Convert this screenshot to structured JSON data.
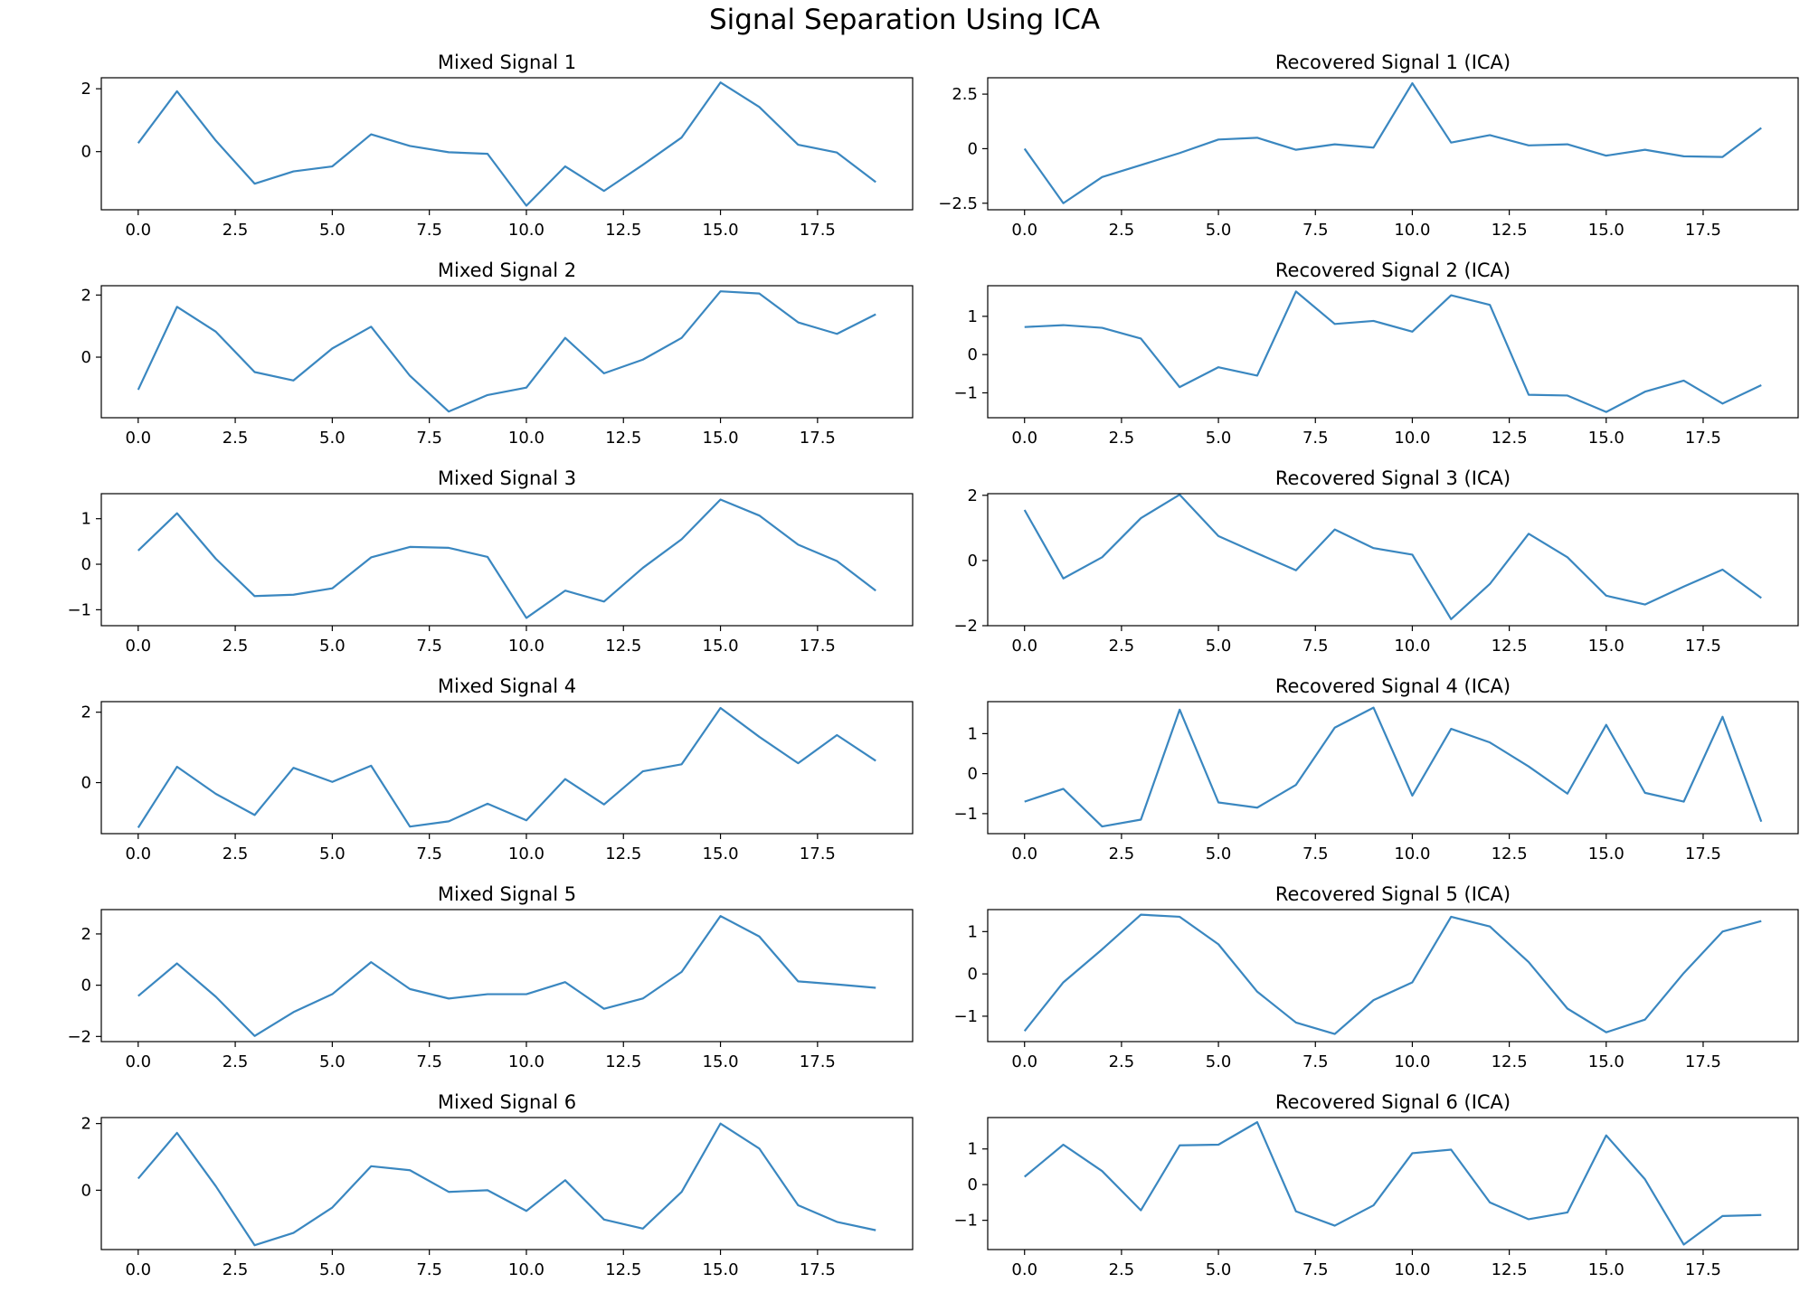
{
  "figure": {
    "title": "Signal Separation Using ICA",
    "line_color": "#3a87c0"
  },
  "chart_data": [
    {
      "type": "line",
      "title": "Mixed Signal 1",
      "x": [
        0,
        1,
        2,
        3,
        4,
        5,
        6,
        7,
        8,
        9,
        10,
        11,
        12,
        13,
        14,
        15,
        16,
        17,
        18,
        19
      ],
      "y": [
        0.27,
        1.92,
        0.35,
        -1.02,
        -0.63,
        -0.47,
        0.55,
        0.18,
        -0.02,
        -0.07,
        -1.72,
        -0.47,
        -1.25,
        -0.42,
        0.45,
        2.2,
        1.42,
        0.22,
        -0.03,
        -0.97
      ],
      "ylim": [
        -1.85,
        2.35
      ],
      "yticks": [
        0,
        2
      ],
      "xticks": [
        0,
        2.5,
        5,
        7.5,
        10,
        12.5,
        15,
        17.5
      ],
      "xlim": [
        -0.95,
        19.95
      ]
    },
    {
      "type": "line",
      "title": "Recovered Signal 1 (ICA)",
      "x": [
        0,
        1,
        2,
        3,
        4,
        5,
        6,
        7,
        8,
        9,
        10,
        11,
        12,
        13,
        14,
        15,
        16,
        17,
        18,
        19
      ],
      "y": [
        0,
        -2.5,
        -1.3,
        -0.75,
        -0.2,
        0.42,
        0.5,
        -0.05,
        0.2,
        0.05,
        3,
        0.28,
        0.62,
        0.15,
        0.2,
        -0.32,
        -0.05,
        -0.35,
        -0.38,
        0.95
      ],
      "ylim": [
        -2.8,
        3.25
      ],
      "yticks": [
        -2.5,
        0,
        2.5
      ],
      "xticks": [
        0,
        2.5,
        5,
        7.5,
        10,
        12.5,
        15,
        17.5
      ],
      "xlim": [
        -0.95,
        19.95
      ]
    },
    {
      "type": "line",
      "title": "Mixed Signal 2",
      "x": [
        0,
        1,
        2,
        3,
        4,
        5,
        6,
        7,
        8,
        9,
        10,
        11,
        12,
        13,
        14,
        15,
        16,
        17,
        18,
        19
      ],
      "y": [
        -1.05,
        1.62,
        0.82,
        -0.48,
        -0.75,
        0.28,
        0.98,
        -0.6,
        -1.75,
        -1.22,
        -0.98,
        0.62,
        -0.52,
        -0.08,
        0.62,
        2.12,
        2.05,
        1.12,
        0.75,
        1.38
      ],
      "ylim": [
        -1.95,
        2.3
      ],
      "yticks": [
        0,
        2
      ],
      "xticks": [
        0,
        2.5,
        5,
        7.5,
        10,
        12.5,
        15,
        17.5
      ],
      "xlim": [
        -0.95,
        19.95
      ]
    },
    {
      "type": "line",
      "title": "Recovered Signal 2 (ICA)",
      "x": [
        0,
        1,
        2,
        3,
        4,
        5,
        6,
        7,
        8,
        9,
        10,
        11,
        12,
        13,
        14,
        15,
        16,
        17,
        18,
        19
      ],
      "y": [
        0.72,
        0.77,
        0.7,
        0.42,
        -0.85,
        -0.33,
        -0.55,
        1.65,
        0.8,
        0.88,
        0.6,
        1.55,
        1.3,
        -1.05,
        -1.07,
        -1.5,
        -0.97,
        -0.68,
        -1.28,
        -0.8
      ],
      "ylim": [
        -1.65,
        1.8
      ],
      "yticks": [
        -1,
        0,
        1
      ],
      "xticks": [
        0,
        2.5,
        5,
        7.5,
        10,
        12.5,
        15,
        17.5
      ],
      "xlim": [
        -0.95,
        19.95
      ]
    },
    {
      "type": "line",
      "title": "Mixed Signal 3",
      "x": [
        0,
        1,
        2,
        3,
        4,
        5,
        6,
        7,
        8,
        9,
        10,
        11,
        12,
        13,
        14,
        15,
        16,
        17,
        18,
        19
      ],
      "y": [
        0.3,
        1.12,
        0.12,
        -0.7,
        -0.67,
        -0.53,
        0.15,
        0.38,
        0.36,
        0.16,
        -1.18,
        -0.58,
        -0.82,
        -0.08,
        0.55,
        1.42,
        1.07,
        0.43,
        0.07,
        -0.58
      ],
      "ylim": [
        -1.35,
        1.55
      ],
      "yticks": [
        -1,
        0,
        1
      ],
      "xticks": [
        0,
        2.5,
        5,
        7.5,
        10,
        12.5,
        15,
        17.5
      ],
      "xlim": [
        -0.95,
        19.95
      ]
    },
    {
      "type": "line",
      "title": "Recovered Signal 3 (ICA)",
      "x": [
        0,
        1,
        2,
        3,
        4,
        5,
        6,
        7,
        8,
        9,
        10,
        11,
        12,
        13,
        14,
        15,
        16,
        17,
        18,
        19
      ],
      "y": [
        1.55,
        -0.55,
        0.1,
        1.3,
        2.02,
        0.75,
        0.22,
        -0.3,
        0.95,
        0.38,
        0.18,
        -1.8,
        -0.72,
        0.82,
        0.1,
        -1.08,
        -1.35,
        -0.8,
        -0.28,
        -1.15
      ],
      "ylim": [
        -2.0,
        2.05
      ],
      "yticks": [
        -2,
        0,
        2
      ],
      "xticks": [
        0,
        2.5,
        5,
        7.5,
        10,
        12.5,
        15,
        17.5
      ],
      "xlim": [
        -0.95,
        19.95
      ]
    },
    {
      "type": "line",
      "title": "Mixed Signal 4",
      "x": [
        0,
        1,
        2,
        3,
        4,
        5,
        6,
        7,
        8,
        9,
        10,
        11,
        12,
        13,
        14,
        15,
        16,
        17,
        18,
        19
      ],
      "y": [
        -1.28,
        0.45,
        -0.32,
        -0.92,
        0.42,
        0.02,
        0.48,
        -1.25,
        -1.1,
        -0.6,
        -1.07,
        0.1,
        -0.62,
        0.32,
        0.52,
        2.12,
        1.3,
        0.55,
        1.35,
        0.62
      ],
      "ylim": [
        -1.45,
        2.3
      ],
      "yticks": [
        0,
        2
      ],
      "xticks": [
        0,
        2.5,
        5,
        7.5,
        10,
        12.5,
        15,
        17.5
      ],
      "xlim": [
        -0.95,
        19.95
      ]
    },
    {
      "type": "line",
      "title": "Recovered Signal 4 (ICA)",
      "x": [
        0,
        1,
        2,
        3,
        4,
        5,
        6,
        7,
        8,
        9,
        10,
        11,
        12,
        13,
        14,
        15,
        16,
        17,
        18,
        19
      ],
      "y": [
        -0.7,
        -0.38,
        -1.32,
        -1.15,
        1.6,
        -0.72,
        -0.85,
        -0.28,
        1.15,
        1.65,
        -0.55,
        1.12,
        0.78,
        0.18,
        -0.5,
        1.22,
        -0.48,
        -0.7,
        1.42,
        -1.2
      ],
      "ylim": [
        -1.5,
        1.8
      ],
      "yticks": [
        -1,
        0,
        1
      ],
      "xticks": [
        0,
        2.5,
        5,
        7.5,
        10,
        12.5,
        15,
        17.5
      ],
      "xlim": [
        -0.95,
        19.95
      ]
    },
    {
      "type": "line",
      "title": "Mixed Signal 5",
      "x": [
        0,
        1,
        2,
        3,
        4,
        5,
        6,
        7,
        8,
        9,
        10,
        11,
        12,
        13,
        14,
        15,
        16,
        17,
        18,
        19
      ],
      "y": [
        -0.42,
        0.85,
        -0.45,
        -1.98,
        -1.05,
        -0.35,
        0.9,
        -0.15,
        -0.52,
        -0.35,
        -0.35,
        0.12,
        -0.92,
        -0.52,
        0.52,
        2.7,
        1.9,
        0.15,
        0.03,
        -0.1
      ],
      "ylim": [
        -2.2,
        2.95
      ],
      "yticks": [
        -2,
        0,
        2
      ],
      "xticks": [
        0,
        2.5,
        5,
        7.5,
        10,
        12.5,
        15,
        17.5
      ],
      "xlim": [
        -0.95,
        19.95
      ]
    },
    {
      "type": "line",
      "title": "Recovered Signal 5 (ICA)",
      "x": [
        0,
        1,
        2,
        3,
        4,
        5,
        6,
        7,
        8,
        9,
        10,
        11,
        12,
        13,
        14,
        15,
        16,
        17,
        18,
        19
      ],
      "y": [
        -1.35,
        -0.2,
        0.58,
        1.4,
        1.35,
        0.7,
        -0.42,
        -1.15,
        -1.42,
        -0.62,
        -0.2,
        1.35,
        1.12,
        0.28,
        -0.82,
        -1.38,
        -1.08,
        0.02,
        1.0,
        1.25
      ],
      "ylim": [
        -1.6,
        1.52
      ],
      "yticks": [
        -1,
        0,
        1
      ],
      "xticks": [
        0,
        2.5,
        5,
        7.5,
        10,
        12.5,
        15,
        17.5
      ],
      "xlim": [
        -0.95,
        19.95
      ]
    },
    {
      "type": "line",
      "title": "Mixed Signal 6",
      "x": [
        0,
        1,
        2,
        3,
        4,
        5,
        6,
        7,
        8,
        9,
        10,
        11,
        12,
        13,
        14,
        15,
        16,
        17,
        18,
        19
      ],
      "y": [
        0.35,
        1.72,
        0.12,
        -1.65,
        -1.28,
        -0.52,
        0.72,
        0.6,
        -0.05,
        0.0,
        -0.62,
        0.3,
        -0.88,
        -1.15,
        -0.05,
        2.0,
        1.25,
        -0.45,
        -0.95,
        -1.2
      ],
      "ylim": [
        -1.78,
        2.18
      ],
      "yticks": [
        0,
        2
      ],
      "xticks": [
        0,
        2.5,
        5,
        7.5,
        10,
        12.5,
        15,
        17.5
      ],
      "xlim": [
        -0.95,
        19.95
      ]
    },
    {
      "type": "line",
      "title": "Recovered Signal 6 (ICA)",
      "x": [
        0,
        1,
        2,
        3,
        4,
        5,
        6,
        7,
        8,
        9,
        10,
        11,
        12,
        13,
        14,
        15,
        16,
        17,
        18,
        19
      ],
      "y": [
        0.22,
        1.12,
        0.38,
        -0.72,
        1.1,
        1.12,
        1.75,
        -0.75,
        -1.15,
        -0.58,
        0.88,
        0.98,
        -0.5,
        -0.97,
        -0.78,
        1.38,
        0.15,
        -1.68,
        -0.88,
        -0.85
      ],
      "ylim": [
        -1.82,
        1.88
      ],
      "yticks": [
        -1,
        0,
        1
      ],
      "xticks": [
        0,
        2.5,
        5,
        7.5,
        10,
        12.5,
        15,
        17.5
      ],
      "xlim": [
        -0.95,
        19.95
      ]
    }
  ]
}
